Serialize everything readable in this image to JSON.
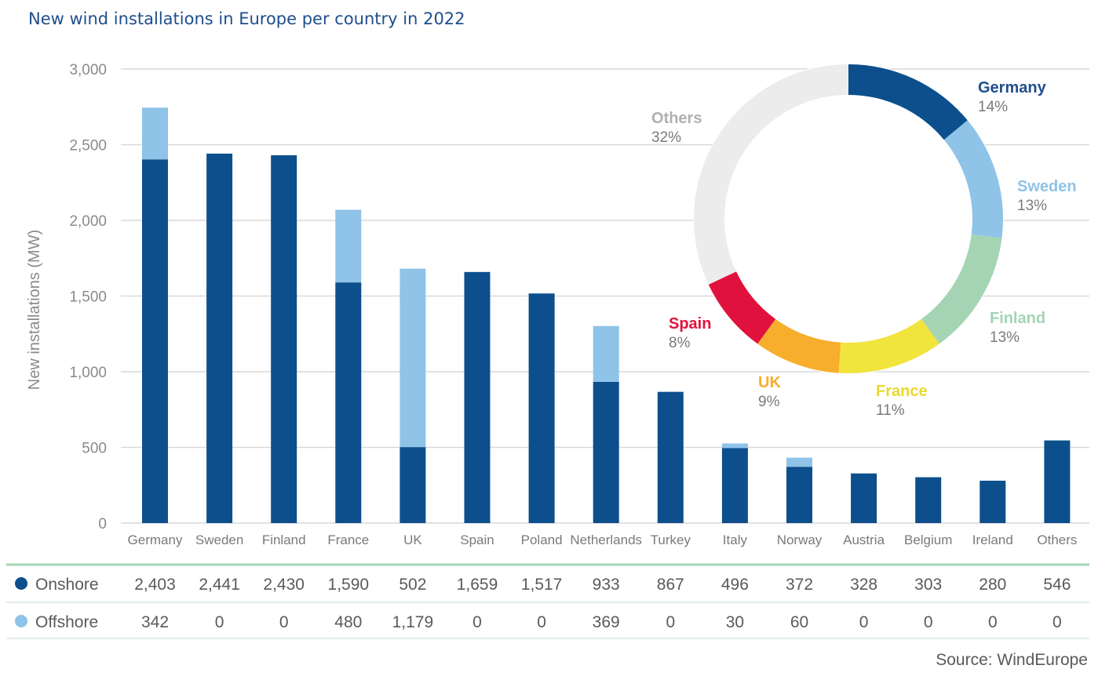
{
  "chart_data": [
    {
      "type": "bar",
      "stacked": true,
      "title": "New wind installations in Europe per country in 2022",
      "ylabel": "New installations (MW)",
      "ylim": [
        0,
        3000
      ],
      "yticks": [
        "0",
        "500",
        "1,000",
        "1,500",
        "2,000",
        "2,500",
        "3,000"
      ],
      "grid": true,
      "categories": [
        "Germany",
        "Sweden",
        "Finland",
        "France",
        "UK",
        "Spain",
        "Poland",
        "Netherlands",
        "Turkey",
        "Italy",
        "Norway",
        "Austria",
        "Belgium",
        "Ireland",
        "Others"
      ],
      "series": [
        {
          "name": "Onshore",
          "color": "#0c4f8c",
          "values": [
            2403,
            2441,
            2430,
            1590,
            502,
            1659,
            1517,
            933,
            867,
            496,
            372,
            328,
            303,
            280,
            546
          ],
          "labels": [
            "2,403",
            "2,441",
            "2,430",
            "1,590",
            "502",
            "1,659",
            "1,517",
            "933",
            "867",
            "496",
            "372",
            "328",
            "303",
            "280",
            "546"
          ]
        },
        {
          "name": "Offshore",
          "color": "#8fc3e8",
          "values": [
            342,
            0,
            0,
            480,
            1179,
            0,
            0,
            369,
            0,
            30,
            60,
            0,
            0,
            0,
            0
          ],
          "labels": [
            "342",
            "0",
            "0",
            "480",
            "1,179",
            "0",
            "0",
            "369",
            "0",
            "30",
            "60",
            "0",
            "0",
            "0",
            "0"
          ]
        }
      ]
    },
    {
      "type": "pie",
      "donut": true,
      "slices": [
        {
          "name": "Germany",
          "pct": "14%",
          "value": 14,
          "color": "#0c4f8c"
        },
        {
          "name": "Sweden",
          "pct": "13%",
          "value": 13,
          "color": "#8fc3e8"
        },
        {
          "name": "Finland",
          "pct": "13%",
          "value": 13,
          "color": "#a4d4b4"
        },
        {
          "name": "France",
          "pct": "11%",
          "value": 11,
          "color": "#f1e43c"
        },
        {
          "name": "UK",
          "pct": "9%",
          "value": 9,
          "color": "#f7ae2c"
        },
        {
          "name": "Spain",
          "pct": "8%",
          "value": 8,
          "color": "#e0123d"
        },
        {
          "name": "Others",
          "pct": "32%",
          "value": 32,
          "color": "#ececec"
        }
      ]
    }
  ],
  "source": "Source: WindEurope",
  "colors": {
    "grid": "#d9d9d9",
    "table_line": "#a4d4b4",
    "axis_text": "#8a8a8a"
  }
}
